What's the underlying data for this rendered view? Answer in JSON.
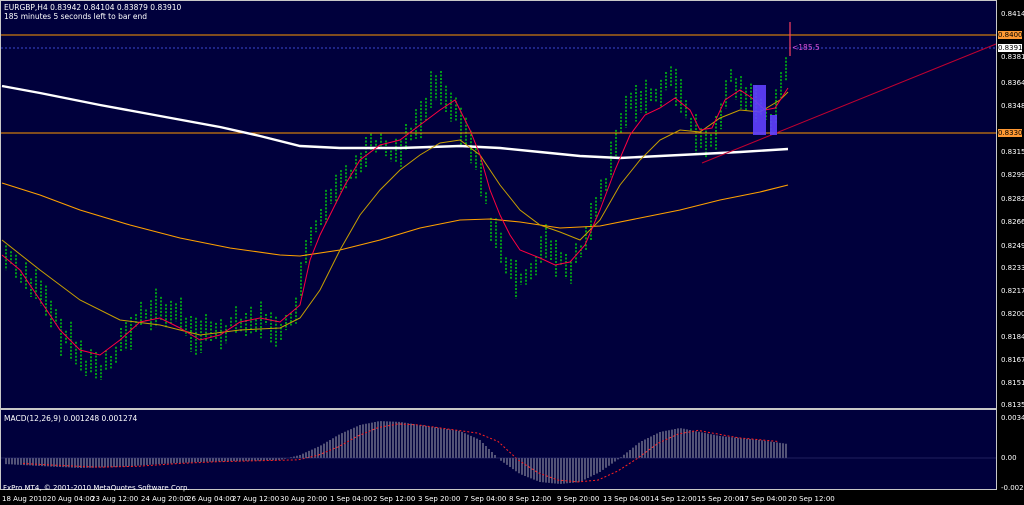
{
  "header": {
    "symbol_line": "EURGBP,H4  0.83942 0.84104 0.83879 0.83910",
    "countdown": "185 minutes 5 seconds left to bar end"
  },
  "measure_label": "<185.5",
  "price_axis": [
    "0.84140",
    "0.83810",
    "0.83645",
    "0.83485",
    "0.83155",
    "0.82990",
    "0.82825",
    "0.82660",
    "0.82495",
    "0.82335",
    "0.82170",
    "0.82005",
    "0.81840",
    "0.81675",
    "0.81510",
    "0.81350"
  ],
  "price_tags": {
    "resistance": "0.84000",
    "current": "0.83910",
    "support": "0.83300"
  },
  "macd": {
    "label": "MACD(12,26,9) 0.001248 0.001274",
    "axis": [
      "0.003490",
      "0.00",
      "-0.002512"
    ]
  },
  "time_axis": [
    "18 Aug 2010",
    "20 Aug 04:00",
    "23 Aug 12:00",
    "24 Aug 20:00",
    "26 Aug 04:00",
    "27 Aug 12:00",
    "30 Aug 20:00",
    "1 Sep 04:00",
    "2 Sep 12:00",
    "3 Sep 20:00",
    "7 Sep 04:00",
    "8 Sep 12:00",
    "9 Sep 20:00",
    "13 Sep 04:00",
    "14 Sep 12:00",
    "15 Sep 20:00",
    "17 Sep 04:00",
    "20 Sep 12:00"
  ],
  "copyright": "FxPro MT4, © 2001-2010 MetaQuotes Software Corp.",
  "colors": {
    "panel_bg": "#00003c",
    "candle": "#00ff00",
    "ma_fast": "#ff0040",
    "ma_mid": "#c8a000",
    "ma_slow": "#ffa000",
    "ma_200": "#ffffff",
    "macd_hist": "#d0d0d0",
    "macd_signal": "#ff2020",
    "support_line": "#ff9900",
    "trend_line": "#c00030",
    "zone": "#6040ff"
  },
  "chart_data": {
    "type": "candlestick",
    "symbol": "EURGBP",
    "timeframe": "H4",
    "ylim": [
      0.8135,
      0.8414
    ],
    "horizontal_levels": [
      0.84,
      0.8391,
      0.833
    ],
    "macd_ylim": [
      -0.002512,
      0.00349
    ]
  }
}
